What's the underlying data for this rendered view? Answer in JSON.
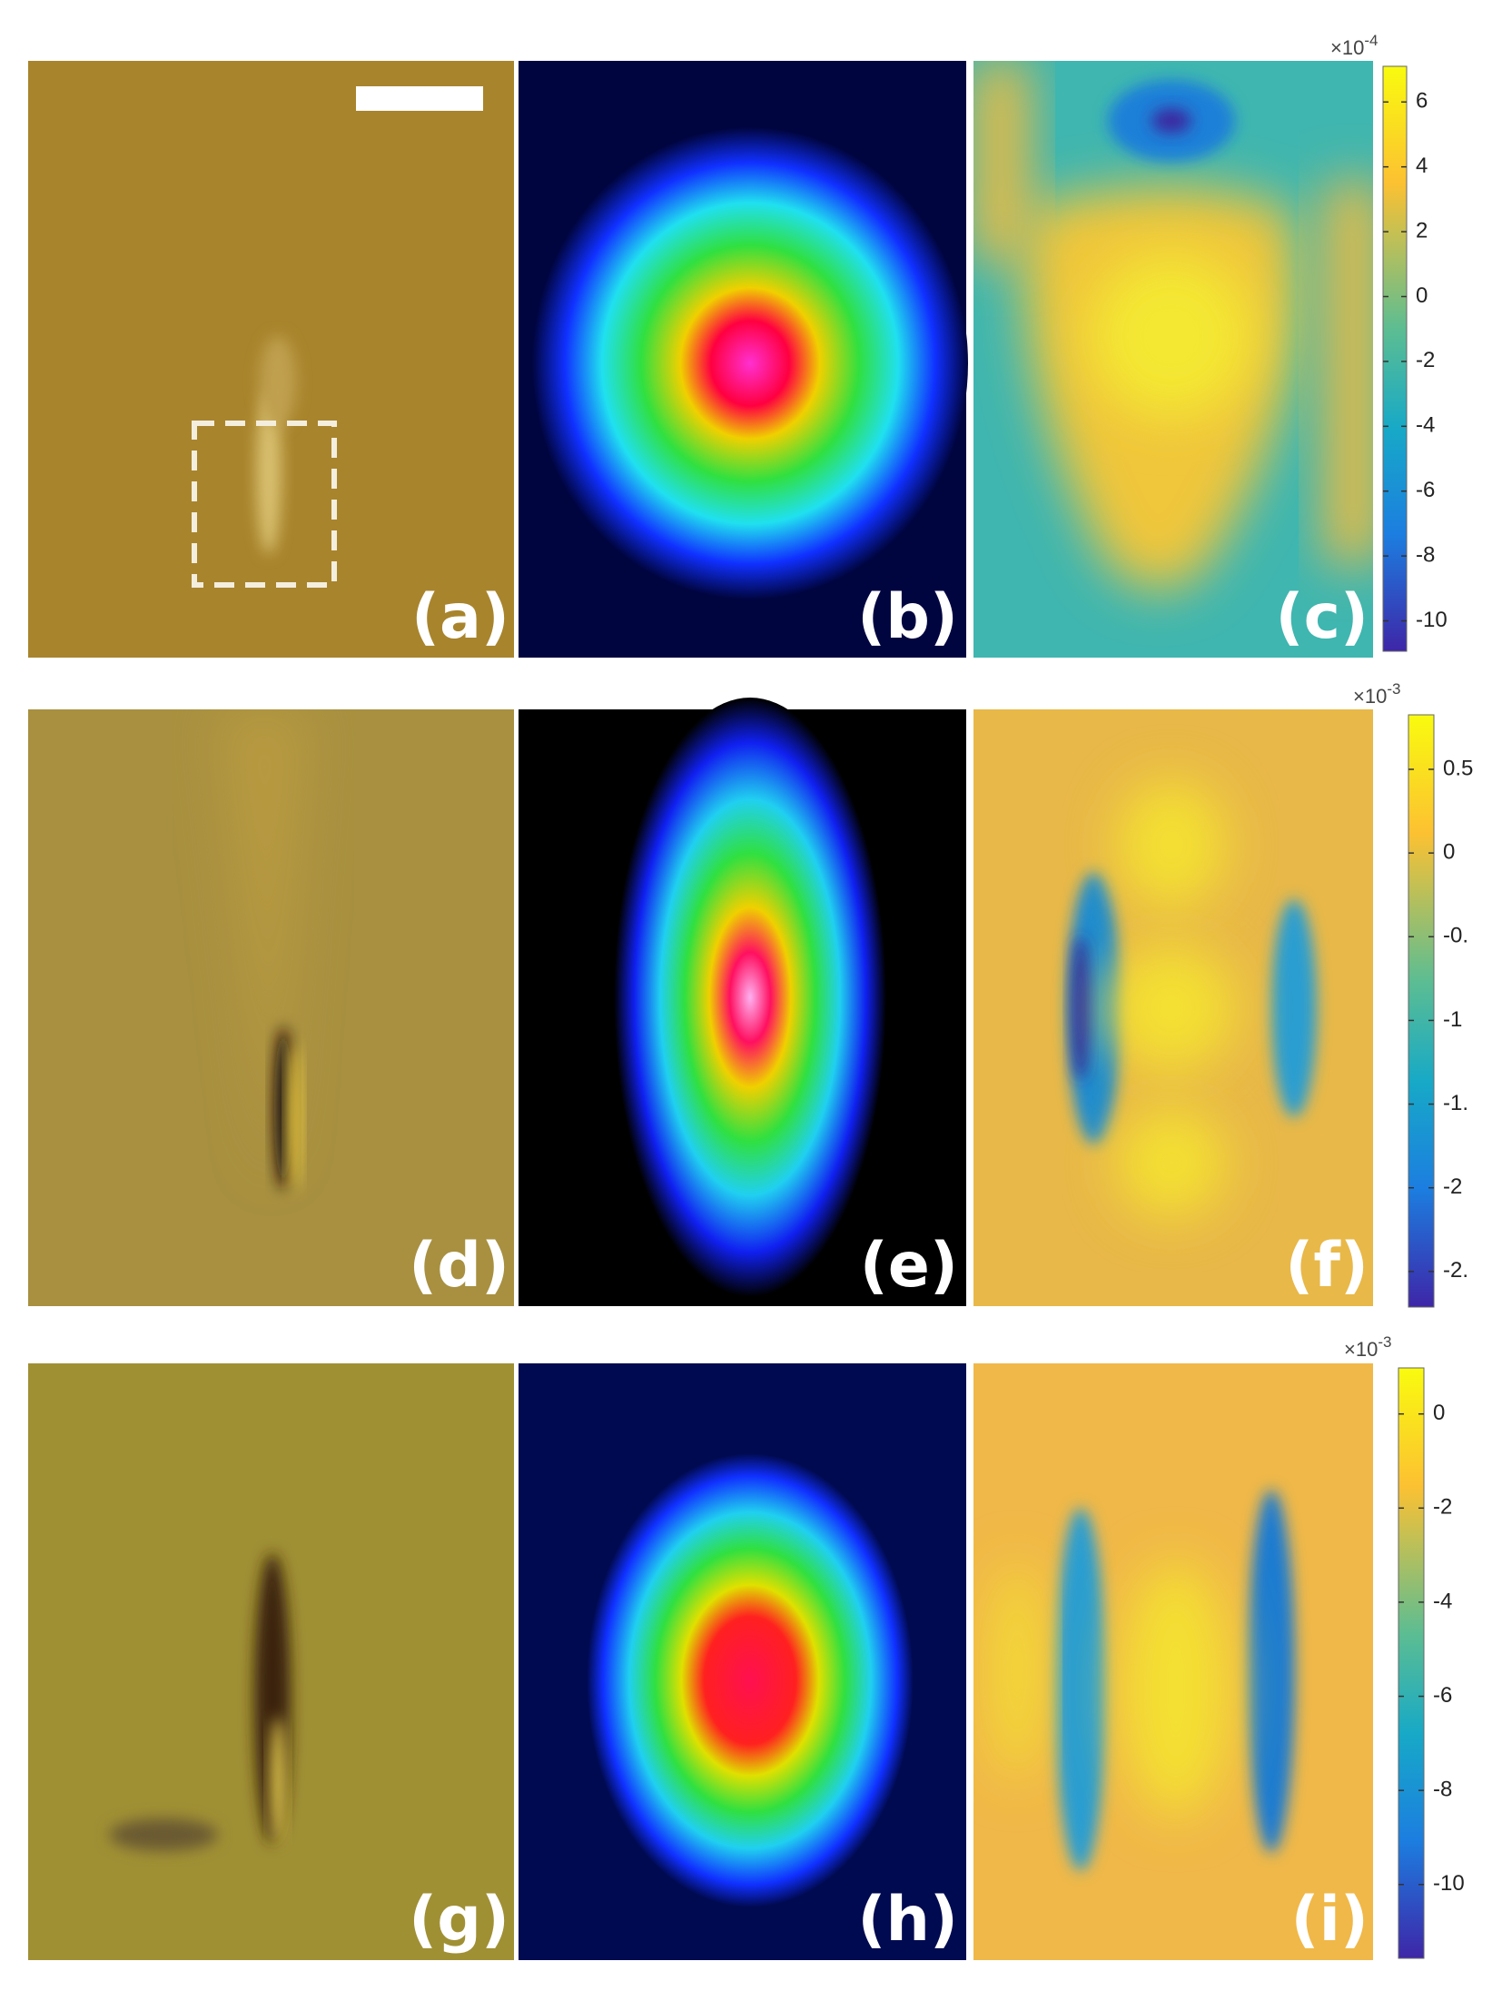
{
  "rows": [
    {
      "panels": [
        "(a)",
        "(b)",
        "(c)"
      ],
      "colorbar": {
        "multiplier": "×10",
        "power": "-4",
        "ticks": [
          "6",
          "4",
          "2",
          "0",
          "-2",
          "-4",
          "-6",
          "-8",
          "-10"
        ]
      }
    },
    {
      "panels": [
        "(d)",
        "(e)",
        "(f)"
      ],
      "colorbar": {
        "multiplier": "×10",
        "power": "-3",
        "ticks": [
          "0.5",
          "0",
          "-0.",
          "-1",
          "-1.",
          "-2",
          "-2."
        ]
      }
    },
    {
      "panels": [
        "(g)",
        "(h)",
        "(i)"
      ],
      "colorbar": {
        "multiplier": "×10",
        "power": "-3",
        "ticks": [
          "0",
          "-2",
          "-4",
          "-6",
          "-8",
          "-10"
        ]
      }
    }
  ]
}
